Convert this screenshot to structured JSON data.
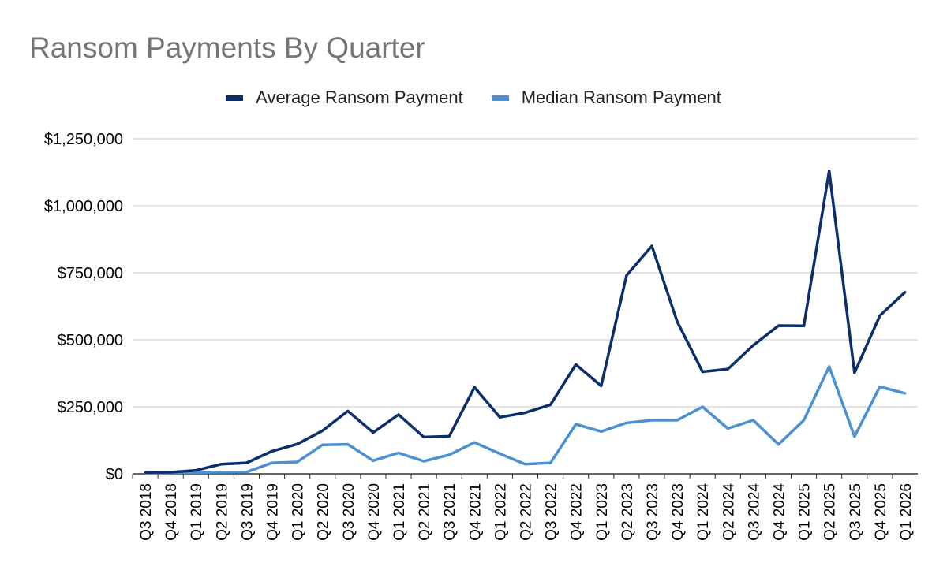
{
  "chart_data": {
    "type": "line",
    "title": "Ransom Payments By Quarter",
    "xlabel": "",
    "ylabel": "",
    "ylim": [
      0,
      1250000
    ],
    "yticks": [
      0,
      250000,
      500000,
      750000,
      1000000,
      1250000
    ],
    "ytick_labels": [
      "$0",
      "$250,000",
      "$500,000",
      "$750,000",
      "$1,000,000",
      "$1,250,000"
    ],
    "grid": "horizontal",
    "legend_position": "top",
    "categories": [
      "Q3 2018",
      "Q4 2018",
      "Q1 2019",
      "Q2 2019",
      "Q3 2019",
      "Q4 2019",
      "Q1 2020",
      "Q2 2020",
      "Q3 2020",
      "Q4 2020",
      "Q1 2021",
      "Q2 2021",
      "Q3 2021",
      "Q4 2021",
      "Q1 2022",
      "Q2 2022",
      "Q3 2022",
      "Q4 2022",
      "Q1 2023",
      "Q2 2023",
      "Q3 2023",
      "Q4 2023",
      "Q1 2024",
      "Q2 2024",
      "Q3 2024",
      "Q4 2024",
      "Q1 2025",
      "Q2 2025",
      "Q3 2025",
      "Q4 2025",
      "Q1 2026"
    ],
    "series": [
      {
        "name": "Average Ransom Payment",
        "color": "#0b2f6b",
        "values": [
          5000,
          6000,
          13000,
          36000,
          41000,
          84000,
          111000,
          161000,
          234000,
          154000,
          221000,
          137000,
          140000,
          323000,
          211000,
          228000,
          258000,
          408000,
          328000,
          740000,
          850000,
          568000,
          381000,
          391000,
          479000,
          553000,
          552000,
          1130000,
          377000,
          590000,
          678000
        ]
      },
      {
        "name": "Median Ransom Payment",
        "color": "#4a90d2",
        "values": [
          3000,
          4000,
          5000,
          6000,
          6500,
          41000,
          44000,
          108000,
          110000,
          49000,
          78000,
          47000,
          71000,
          117000,
          75000,
          36000,
          41000,
          185000,
          158000,
          190000,
          200000,
          200000,
          250000,
          169000,
          200000,
          110000,
          200000,
          400000,
          139000,
          325000,
          300000
        ]
      }
    ]
  }
}
